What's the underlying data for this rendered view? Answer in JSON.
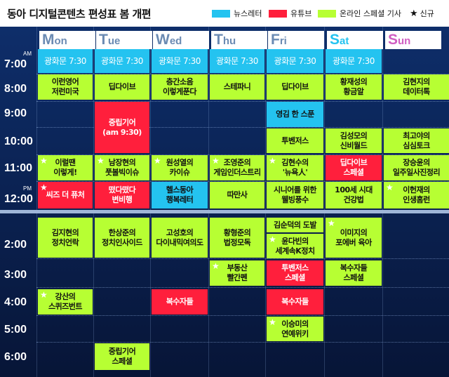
{
  "title": "동아 디지털콘텐츠 편성표 봄 개편",
  "legend": [
    {
      "label": "뉴스레터",
      "color": "#24c3f0",
      "kind": "swatch"
    },
    {
      "label": "유튜브",
      "color": "#ff1f3c",
      "kind": "swatch"
    },
    {
      "label": "온라인 스페셜 기사",
      "color": "#b7ff33",
      "kind": "swatch"
    },
    {
      "label": "신규",
      "icon": "star-icon",
      "kind": "star"
    }
  ],
  "days": [
    {
      "first": "M",
      "rest": "on",
      "color": "#6b8bb3"
    },
    {
      "first": "T",
      "rest": "ue",
      "color": "#6b8bb3"
    },
    {
      "first": "W",
      "rest": "ed",
      "color": "#6b8bb3"
    },
    {
      "first": "T",
      "rest": "hu",
      "color": "#6b8bb3"
    },
    {
      "first": "F",
      "rest": "ri",
      "color": "#6b8bb3"
    },
    {
      "first": "S",
      "rest": "at",
      "color": "#24c3f0"
    },
    {
      "first": "S",
      "rest": "un",
      "color": "#d15ec2"
    }
  ],
  "times": [
    {
      "label": "7:00",
      "ampm": "AM"
    },
    {
      "label": "8:00",
      "ampm": ""
    },
    {
      "label": "9:00",
      "ampm": ""
    },
    {
      "label": "10:00",
      "ampm": ""
    },
    {
      "label": "11:00",
      "ampm": ""
    },
    {
      "label": "12:00",
      "ampm": "PM"
    },
    {
      "label": "2:00",
      "ampm": ""
    },
    {
      "label": "3:00",
      "ampm": ""
    },
    {
      "label": "4:00",
      "ampm": ""
    },
    {
      "label": "5:00",
      "ampm": ""
    },
    {
      "label": "6:00",
      "ampm": ""
    }
  ],
  "programs": [
    {
      "text": "광화문 7:30",
      "type": "cyan",
      "new": false
    },
    {
      "text": "광화문 7:30",
      "type": "cyan",
      "new": false
    },
    {
      "text": "광화문 7:30",
      "type": "cyan",
      "new": false
    },
    {
      "text": "광화문 7:30",
      "type": "cyan",
      "new": false
    },
    {
      "text": "광화문 7:30",
      "type": "cyan",
      "new": false
    },
    {
      "text": "광화문 7:30",
      "type": "cyan",
      "new": false
    },
    {
      "text": "이런영어\n저런미국",
      "type": "green",
      "new": false
    },
    {
      "text": "딥다이브",
      "type": "green",
      "new": false
    },
    {
      "text": "층간소음\n이렇게푼다",
      "type": "green",
      "new": false
    },
    {
      "text": "스테파니",
      "type": "green",
      "new": false
    },
    {
      "text": "딥다이브",
      "type": "green",
      "new": false
    },
    {
      "text": "황재성의\n황금알",
      "type": "green",
      "new": false
    },
    {
      "text": "김현지의\n데이터톡",
      "type": "green",
      "new": false
    },
    {
      "text": "중립기어\n(am 9:30)",
      "type": "red",
      "new": false
    },
    {
      "text": "영김 한 스푼",
      "type": "cyan",
      "new": false
    },
    {
      "text": "투벤저스",
      "type": "green",
      "new": false
    },
    {
      "text": "김성모의\n신비월드",
      "type": "green",
      "new": false
    },
    {
      "text": "최고야의\n심심토크",
      "type": "green",
      "new": false
    },
    {
      "text": "이럴땐\n이렇게!",
      "type": "green",
      "new": true
    },
    {
      "text": "남장현의\n풋볼빅이슈",
      "type": "green",
      "new": true
    },
    {
      "text": "원성열의\n카이슈",
      "type": "green",
      "new": true
    },
    {
      "text": "조영준의\n게임인더스트리",
      "type": "green",
      "new": true
    },
    {
      "text": "김현수의\n'뉴욕人'",
      "type": "green",
      "new": true
    },
    {
      "text": "딥다이브\n스페셜",
      "type": "red",
      "new": false
    },
    {
      "text": "장승윤의\n일주일사진정리",
      "type": "green",
      "new": false
    },
    {
      "text": "씨즈 더 퓨처",
      "type": "red",
      "new": true
    },
    {
      "text": "떴다떴다\n변비행",
      "type": "red",
      "new": false
    },
    {
      "text": "헬스동아\n행복레터",
      "type": "cyan",
      "new": false
    },
    {
      "text": "따만사",
      "type": "green",
      "new": false
    },
    {
      "text": "시니어를 위한\n웰빙풍수",
      "type": "green",
      "new": false
    },
    {
      "text": "100세 시대\n건강법",
      "type": "green",
      "new": false
    },
    {
      "text": "이헌재의\n인생홈런",
      "type": "green",
      "new": true
    },
    {
      "text": "김지현의\n정치언락",
      "type": "green",
      "new": false
    },
    {
      "text": "한상준의\n정치인사이드",
      "type": "green",
      "new": false
    },
    {
      "text": "고성호의\n다이내믹여의도",
      "type": "green",
      "new": false
    },
    {
      "text": "황형준의\n법정모독",
      "type": "green",
      "new": false
    },
    {
      "text": "김순덕의 도발",
      "type": "green",
      "new": false
    },
    {
      "text": "윤다빈의\n세계속K정치",
      "type": "green",
      "new": true
    },
    {
      "text": "이미지의\n포에버 육아",
      "type": "green",
      "new": true
    },
    {
      "text": "부동산\n빨간펜",
      "type": "green",
      "new": true
    },
    {
      "text": "투벤저스\n스페셜",
      "type": "red",
      "new": false
    },
    {
      "text": "복수자들\n스페셜",
      "type": "green",
      "new": false
    },
    {
      "text": "강산의\n스퀴즈번트",
      "type": "green",
      "new": true
    },
    {
      "text": "복수자들",
      "type": "red",
      "new": false
    },
    {
      "text": "복수자들",
      "type": "red",
      "new": false
    },
    {
      "text": "이승미의\n연예위키",
      "type": "green",
      "new": true
    },
    {
      "text": "중립기어\n스페셜",
      "type": "green",
      "new": false
    }
  ]
}
